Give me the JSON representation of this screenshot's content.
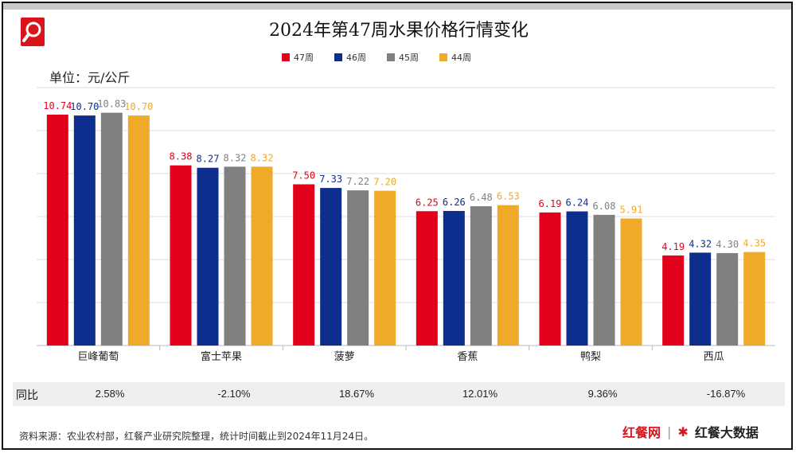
{
  "title": "2024年第47周水果价格行情变化",
  "unit_label": "单位：元/公斤",
  "yoy_label": "同比",
  "source": "资料来源：农业农村部，红餐产业研究院整理，统计时间截止到2024年11月24日。",
  "brand": {
    "name1": "红餐网",
    "mark": "✱",
    "name2": "红餐大数据"
  },
  "colors": {
    "47周": "#e3001b",
    "46周": "#0d2e8c",
    "45周": "#808080",
    "44周": "#f0a928"
  },
  "chart_data": {
    "type": "bar",
    "ylim": [
      0,
      12
    ],
    "grid": true,
    "legend_position": "top",
    "categories": [
      "巨峰葡萄",
      "富士苹果",
      "菠萝",
      "香蕉",
      "鸭梨",
      "西瓜"
    ],
    "series": [
      {
        "name": "47周",
        "values": [
          10.74,
          8.38,
          7.5,
          6.25,
          6.19,
          4.19
        ]
      },
      {
        "name": "46周",
        "values": [
          10.7,
          8.27,
          7.33,
          6.26,
          6.24,
          4.32
        ]
      },
      {
        "name": "45周",
        "values": [
          10.83,
          8.32,
          7.22,
          6.48,
          6.08,
          4.3
        ]
      },
      {
        "name": "44周",
        "values": [
          10.7,
          8.32,
          7.2,
          6.53,
          5.91,
          4.35
        ]
      }
    ],
    "yoy": [
      "2.58%",
      "-2.10%",
      "18.67%",
      "12.01%",
      "9.36%",
      "-16.87%"
    ]
  }
}
